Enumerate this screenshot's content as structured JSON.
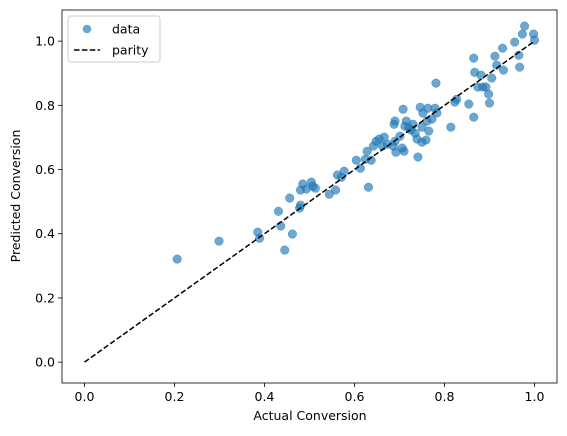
{
  "chart_data": {
    "type": "scatter",
    "xlabel": "Actual Conversion",
    "ylabel": "Predicted Conversion",
    "xlim": [
      -0.05,
      1.05
    ],
    "ylim": [
      -0.065,
      1.097
    ],
    "xticks": [
      {
        "value": 0,
        "label": "0.0"
      },
      0.2,
      0.4,
      0.6,
      0.8,
      {
        "value": 1,
        "label": "1.0"
      }
    ],
    "yticks": [
      {
        "value": 0,
        "label": "0.0"
      },
      0.2,
      0.4,
      0.6,
      0.8,
      {
        "value": 1,
        "label": "1.0"
      }
    ],
    "legend": "upper left",
    "series": [
      {
        "name": "data",
        "color": "#1f77b4",
        "marker": "circle",
        "alpha": 0.65,
        "x": [
          0.206,
          0.299,
          0.385,
          0.389,
          0.431,
          0.436,
          0.445,
          0.456,
          0.462,
          0.48,
          0.485,
          0.478,
          0.48,
          0.493,
          0.504,
          0.507,
          0.513,
          0.544,
          0.558,
          0.562,
          0.571,
          0.577,
          0.604,
          0.613,
          0.624,
          0.628,
          0.631,
          0.637,
          0.642,
          0.648,
          0.655,
          0.662,
          0.666,
          0.673,
          0.686,
          0.69,
          0.688,
          0.69,
          0.692,
          0.701,
          0.706,
          0.708,
          0.71,
          0.712,
          0.715,
          0.721,
          0.726,
          0.73,
          0.735,
          0.739,
          0.741,
          0.746,
          0.75,
          0.75,
          0.752,
          0.759,
          0.761,
          0.763,
          0.765,
          0.772,
          0.779,
          0.781,
          0.783,
          0.814,
          0.823,
          0.827,
          0.854,
          0.865,
          0.865,
          0.867,
          0.874,
          0.881,
          0.885,
          0.892,
          0.898,
          0.9,
          0.905,
          0.912,
          0.916,
          0.929,
          0.931,
          0.956,
          0.965,
          0.967,
          0.973,
          0.978,
          0.998,
          1.0
        ],
        "values": [
          0.321,
          0.377,
          0.405,
          0.386,
          0.47,
          0.424,
          0.349,
          0.511,
          0.399,
          0.536,
          0.555,
          0.48,
          0.489,
          0.539,
          0.561,
          0.548,
          0.542,
          0.523,
          0.536,
          0.583,
          0.576,
          0.595,
          0.629,
          0.604,
          0.632,
          0.657,
          0.545,
          0.629,
          0.673,
          0.688,
          0.695,
          0.673,
          0.701,
          0.679,
          0.673,
          0.688,
          0.741,
          0.751,
          0.654,
          0.704,
          0.667,
          0.788,
          0.657,
          0.735,
          0.751,
          0.729,
          0.723,
          0.741,
          0.713,
          0.695,
          0.639,
          0.794,
          0.732,
          0.685,
          0.776,
          0.692,
          0.751,
          0.791,
          0.72,
          0.757,
          0.791,
          0.869,
          0.776,
          0.732,
          0.81,
          0.819,
          0.804,
          0.763,
          0.947,
          0.903,
          0.857,
          0.894,
          0.857,
          0.857,
          0.835,
          0.807,
          0.885,
          0.953,
          0.925,
          0.978,
          0.91,
          0.997,
          0.956,
          0.919,
          1.022,
          1.047,
          1.022,
          1.003
        ]
      },
      {
        "name": "parity",
        "color": "#000000",
        "marker": "line",
        "dash": "dashed",
        "x": [
          0,
          1
        ],
        "values": [
          0,
          1
        ]
      }
    ]
  }
}
